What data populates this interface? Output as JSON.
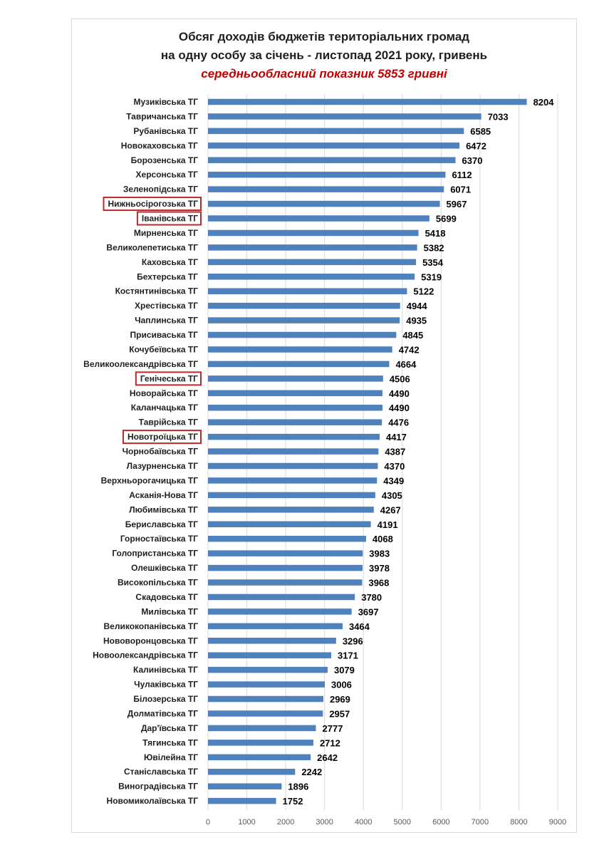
{
  "chart_data": {
    "type": "bar",
    "orientation": "horizontal",
    "title": "Обсяг доходів бюджетів територіальних громад",
    "title_line2": "на одну особу за січень - листопад 2021 року, гривень",
    "subtitle": "середньообласний показник 5853 гривні",
    "xlim": [
      0,
      9000
    ],
    "xticks": [
      "0",
      "1000",
      "2000",
      "3000",
      "4000",
      "5000",
      "6000",
      "7000",
      "8000",
      "9000"
    ],
    "grid": "vertical",
    "bar_color": "#4f81bd",
    "highlight_color": "#c0282d",
    "categories": [
      "Музиківська ТГ",
      "Тавричанська ТГ",
      "Рубанівська ТГ",
      "Новокаховська ТГ",
      "Борозенська ТГ",
      "Херсонська ТГ",
      "Зеленопідська ТГ",
      "Нижньосірогозька ТГ",
      "Іванівська ТГ",
      "Мирненська ТГ",
      "Великолепетиська ТГ",
      "Каховська ТГ",
      "Бехтерська ТГ",
      "Костянтинівська ТГ",
      "Хрестівська ТГ",
      "Чаплинська ТГ",
      "Присиваська ТГ",
      "Кочубеївська ТГ",
      "Великоолександрівська ТГ",
      "Генічеська ТГ",
      "Новорайська ТГ",
      "Каланчацька ТГ",
      "Таврійська ТГ",
      "Новотроїцька ТГ",
      "Чорнобаївська ТГ",
      "Лазурненська ТГ",
      "Верхньорогачицька ТГ",
      "Асканія-Нова ТГ",
      "Любимівська ТГ",
      "Бериславська ТГ",
      "Горностаївська ТГ",
      "Голопристанська ТГ",
      "Олешківська ТГ",
      "Високопільська ТГ",
      "Скадовська ТГ",
      "Милівська ТГ",
      "Великокопанівська ТГ",
      "Нововоронцовська ТГ",
      "Новоолександрівська ТГ",
      "Калинівська ТГ",
      "Чулаківська ТГ",
      "Білозерська ТГ",
      "Долматівська ТГ",
      "Дар'ївська ТГ",
      "Тягинська ТГ",
      "Ювілейна ТГ",
      "Станіславська ТГ",
      "Виноградівська ТГ",
      "Новомиколаївська ТГ"
    ],
    "values": [
      8204,
      7033,
      6585,
      6472,
      6370,
      6112,
      6071,
      5967,
      5699,
      5418,
      5382,
      5354,
      5319,
      5122,
      4944,
      4935,
      4845,
      4742,
      4664,
      4506,
      4490,
      4490,
      4476,
      4417,
      4387,
      4370,
      4349,
      4305,
      4267,
      4191,
      4068,
      3983,
      3978,
      3968,
      3780,
      3697,
      3464,
      3296,
      3171,
      3079,
      3006,
      2969,
      2957,
      2777,
      2712,
      2642,
      2242,
      1896,
      1752
    ],
    "highlighted": [
      "Нижньосірогозька ТГ",
      "Іванівська ТГ",
      "Генічеська ТГ",
      "Новотроїцька ТГ"
    ]
  }
}
